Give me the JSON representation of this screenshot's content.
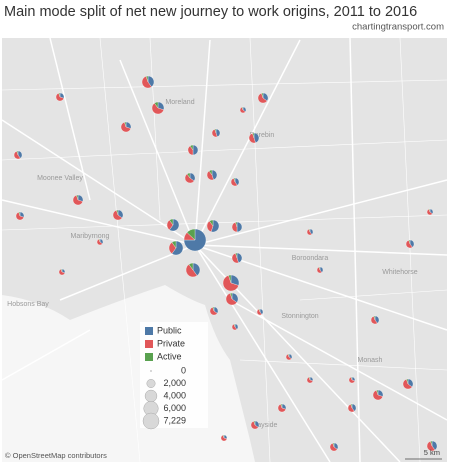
{
  "title": "Main mode split of net new journey to work origins, 2011 to 2016",
  "subtitle": "chartingtransport.com",
  "legend": {
    "modes": [
      {
        "name": "Public",
        "color": "#4e79a7"
      },
      {
        "name": "Private",
        "color": "#e15759"
      },
      {
        "name": "Active",
        "color": "#59a14f"
      }
    ],
    "sizes": [
      0,
      {
        "value": 2000,
        "label": "2,000"
      },
      {
        "value": 4000,
        "label": "4,000"
      },
      {
        "value": 6000,
        "label": "6,000"
      },
      {
        "value": 7229,
        "label": "7,229"
      }
    ]
  },
  "place_labels": [
    "Moonee Valley",
    "Moreland",
    "Darebin",
    "Maribyrnong",
    "Boroondara",
    "Whitehorse",
    "Stonnington",
    "Hobsons Bay",
    "Monash",
    "Bayside"
  ],
  "attribution": "© OpenStreetMap contributors",
  "scale": "5 km"
}
